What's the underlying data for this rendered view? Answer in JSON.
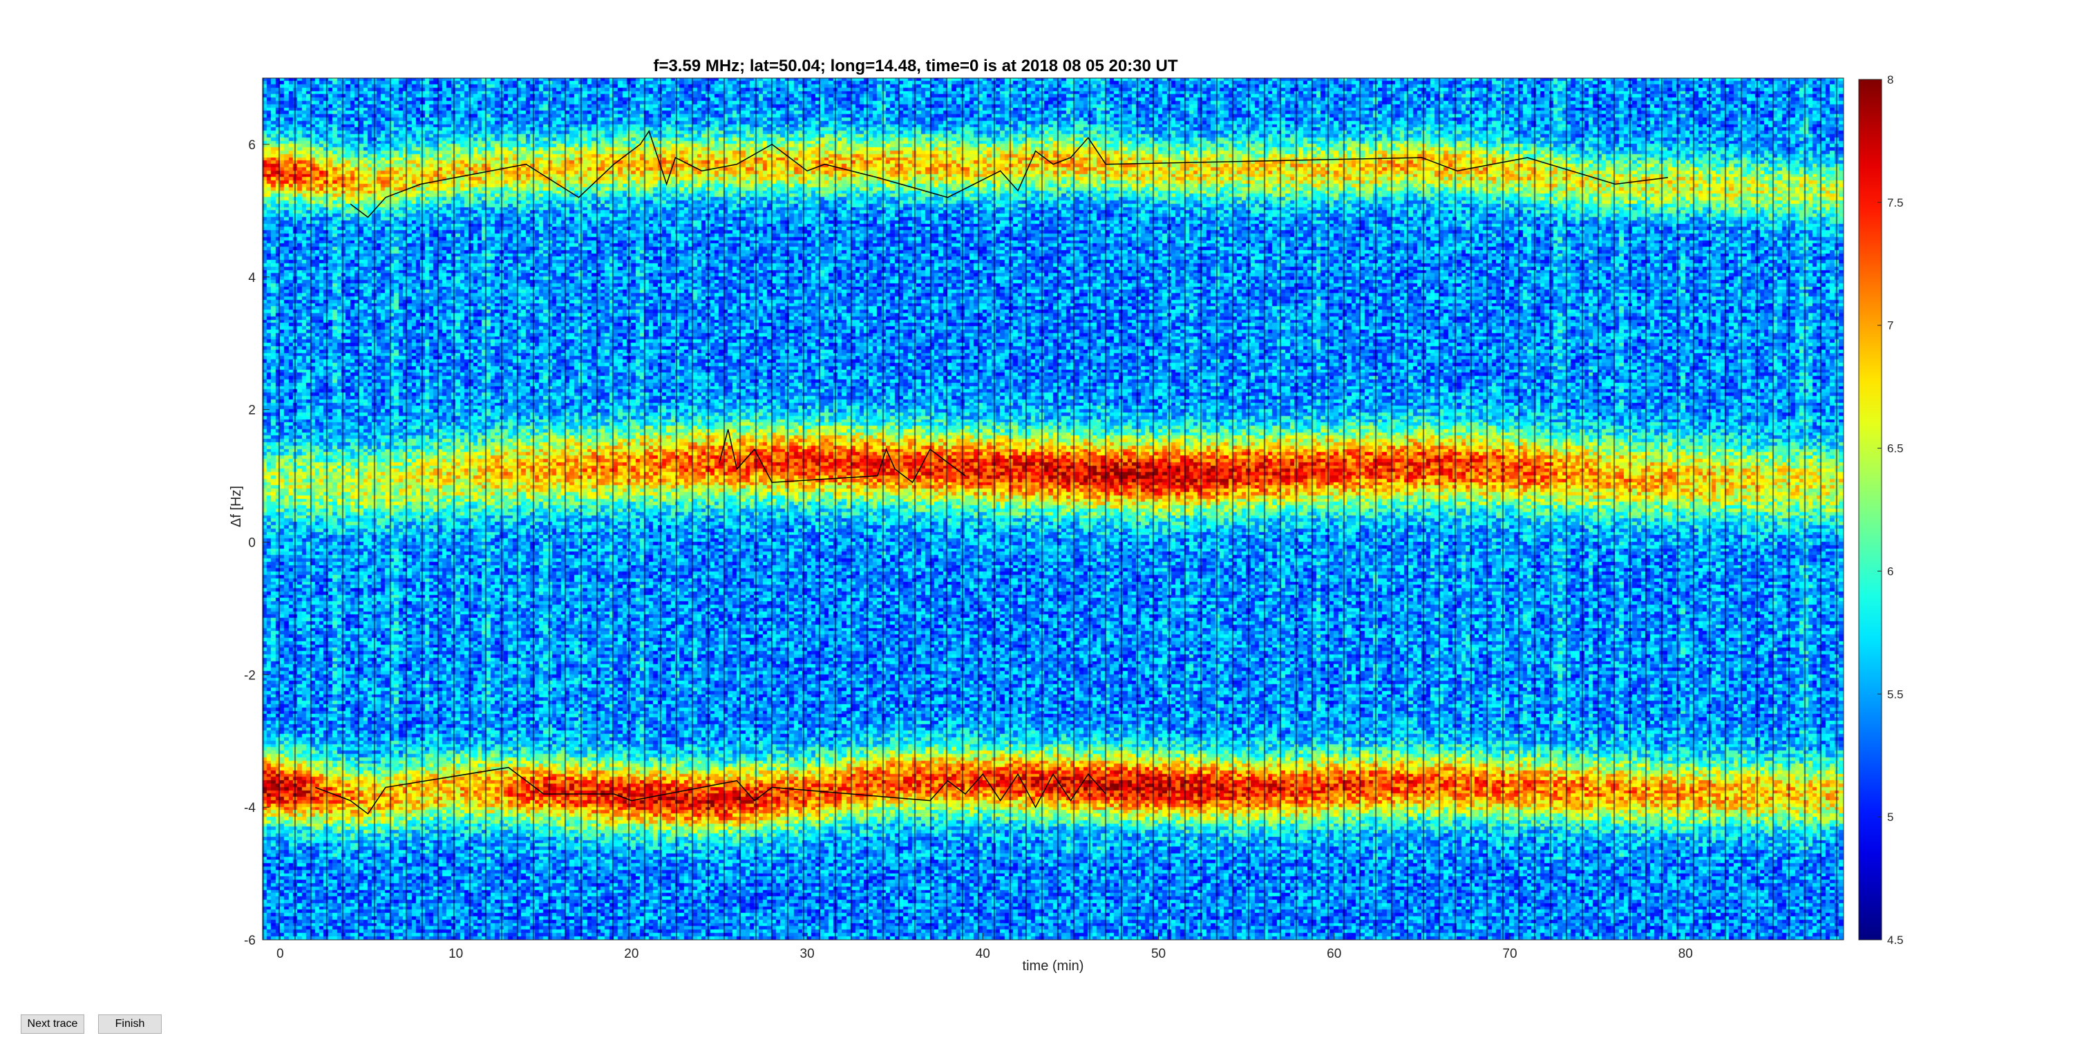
{
  "chart_data": {
    "type": "heatmap",
    "title": "f=3.59 MHz;  lat=50.04; long=14.48, time=0 is at 2018 08 05 20:30 UT",
    "xlabel": "time (min)",
    "ylabel": "Δf [Hz]",
    "xlim": [
      -1,
      89
    ],
    "ylim": [
      -6,
      7
    ],
    "x_ticks": [
      0,
      10,
      20,
      30,
      40,
      50,
      60,
      70,
      80
    ],
    "y_ticks": [
      -6,
      -4,
      -2,
      0,
      2,
      4,
      6
    ],
    "colorbar": {
      "colormap": "jet",
      "clim": [
        4.5,
        8
      ],
      "ticks": [
        4.5,
        5,
        5.5,
        6,
        6.5,
        7,
        7.5,
        8
      ]
    },
    "background_level": 5.4,
    "bands": [
      {
        "time": [
          0,
          5,
          10,
          15,
          20,
          25,
          30,
          35,
          40,
          45,
          50,
          55,
          60,
          65,
          70,
          75,
          80,
          85,
          89
        ],
        "center": [
          5.6,
          5.4,
          5.6,
          5.6,
          5.7,
          5.7,
          5.7,
          5.7,
          5.65,
          5.75,
          5.6,
          5.6,
          5.6,
          5.7,
          5.6,
          5.4,
          5.4,
          5.3,
          5.3
        ],
        "peak": [
          7.4,
          6.9,
          6.8,
          6.8,
          6.9,
          6.9,
          6.9,
          6.9,
          6.8,
          6.9,
          6.7,
          6.7,
          6.8,
          6.9,
          6.8,
          6.6,
          6.6,
          6.5,
          6.5
        ],
        "width": 0.3
      },
      {
        "time": [
          0,
          5,
          10,
          15,
          20,
          25,
          30,
          35,
          40,
          45,
          50,
          55,
          60,
          65,
          70,
          75,
          80,
          85,
          89
        ],
        "center": [
          0.9,
          0.85,
          1.0,
          1.1,
          1.15,
          1.2,
          1.2,
          1.15,
          1.1,
          1.05,
          1.0,
          1.05,
          1.1,
          1.15,
          1.1,
          1.0,
          0.95,
          0.9,
          0.85
        ],
        "peak": [
          6.4,
          6.5,
          6.7,
          7.0,
          7.1,
          7.3,
          7.4,
          7.4,
          7.5,
          7.6,
          7.7,
          7.5,
          7.4,
          7.4,
          7.3,
          7.0,
          6.9,
          6.7,
          6.6
        ],
        "width": 0.4
      },
      {
        "time": [
          0,
          5,
          10,
          15,
          20,
          25,
          30,
          35,
          40,
          45,
          50,
          55,
          60,
          65,
          70,
          75,
          80,
          85,
          89
        ],
        "center": [
          -3.7,
          -3.9,
          -3.7,
          -3.75,
          -3.85,
          -3.9,
          -3.8,
          -3.6,
          -3.6,
          -3.65,
          -3.7,
          -3.75,
          -3.7,
          -3.65,
          -3.7,
          -3.75,
          -3.8,
          -3.8,
          -3.8
        ],
        "peak": [
          7.8,
          6.9,
          6.9,
          7.4,
          7.6,
          7.6,
          7.3,
          7.3,
          7.4,
          7.6,
          7.7,
          7.5,
          7.4,
          7.3,
          7.2,
          7.1,
          7.0,
          6.9,
          6.8
        ],
        "width": 0.35
      }
    ],
    "dark_regions": [
      {
        "time": [
          24,
          30
        ],
        "df": [
          2.5,
          5.0
        ],
        "level": 4.8
      },
      {
        "time": [
          33,
          47
        ],
        "df": [
          2.2,
          5.0
        ],
        "level": 4.7
      },
      {
        "time": [
          47,
          50
        ],
        "df": [
          2.0,
          5.2
        ],
        "level": 4.6
      },
      {
        "time": [
          24,
          47
        ],
        "df": [
          -3.0,
          -0.2
        ],
        "level": 4.8
      },
      {
        "time": [
          48.5,
          50
        ],
        "df": [
          -3.2,
          -0.2
        ],
        "level": 4.6
      },
      {
        "time": [
          60,
          70
        ],
        "df": [
          2.5,
          4.5
        ],
        "level": 4.9
      },
      {
        "time": [
          -1,
          89
        ],
        "df": [
          -6,
          -4.8
        ],
        "level": 5.0
      }
    ],
    "black_traces": [
      {
        "time": [
          4,
          5,
          6,
          8,
          10,
          14,
          17,
          19,
          20.5,
          21,
          22,
          22.5,
          24,
          26,
          28,
          30,
          31,
          34,
          38,
          41,
          42,
          43,
          44,
          45,
          46,
          47,
          65,
          67,
          71,
          76,
          79
        ],
        "df": [
          5.1,
          4.9,
          5.2,
          5.4,
          5.5,
          5.7,
          5.2,
          5.7,
          6.0,
          6.2,
          5.4,
          5.8,
          5.6,
          5.7,
          6.0,
          5.6,
          5.7,
          5.5,
          5.2,
          5.6,
          5.3,
          5.9,
          5.7,
          5.8,
          6.1,
          5.7,
          5.8,
          5.6,
          5.8,
          5.4,
          5.5
        ]
      },
      {
        "time": [
          25,
          25.5,
          26,
          27,
          28,
          34,
          34.5,
          35,
          36,
          37,
          39
        ],
        "df": [
          1.2,
          1.7,
          1.1,
          1.4,
          0.9,
          1.0,
          1.4,
          1.1,
          0.9,
          1.4,
          1.0
        ]
      },
      {
        "time": [
          2,
          4,
          5,
          6,
          13,
          14,
          15,
          19,
          20,
          26,
          27,
          28,
          37,
          38,
          39,
          40,
          41,
          42,
          43,
          44,
          45,
          46,
          47
        ],
        "df": [
          -3.7,
          -3.9,
          -4.1,
          -3.7,
          -3.4,
          -3.6,
          -3.8,
          -3.8,
          -3.9,
          -3.6,
          -3.9,
          -3.7,
          -3.9,
          -3.6,
          -3.8,
          -3.5,
          -3.9,
          -3.5,
          -4.0,
          -3.5,
          -3.9,
          -3.5,
          -3.8
        ]
      }
    ]
  },
  "controls": {
    "next_trace_label": "Next trace",
    "finish_label": "Finish"
  }
}
